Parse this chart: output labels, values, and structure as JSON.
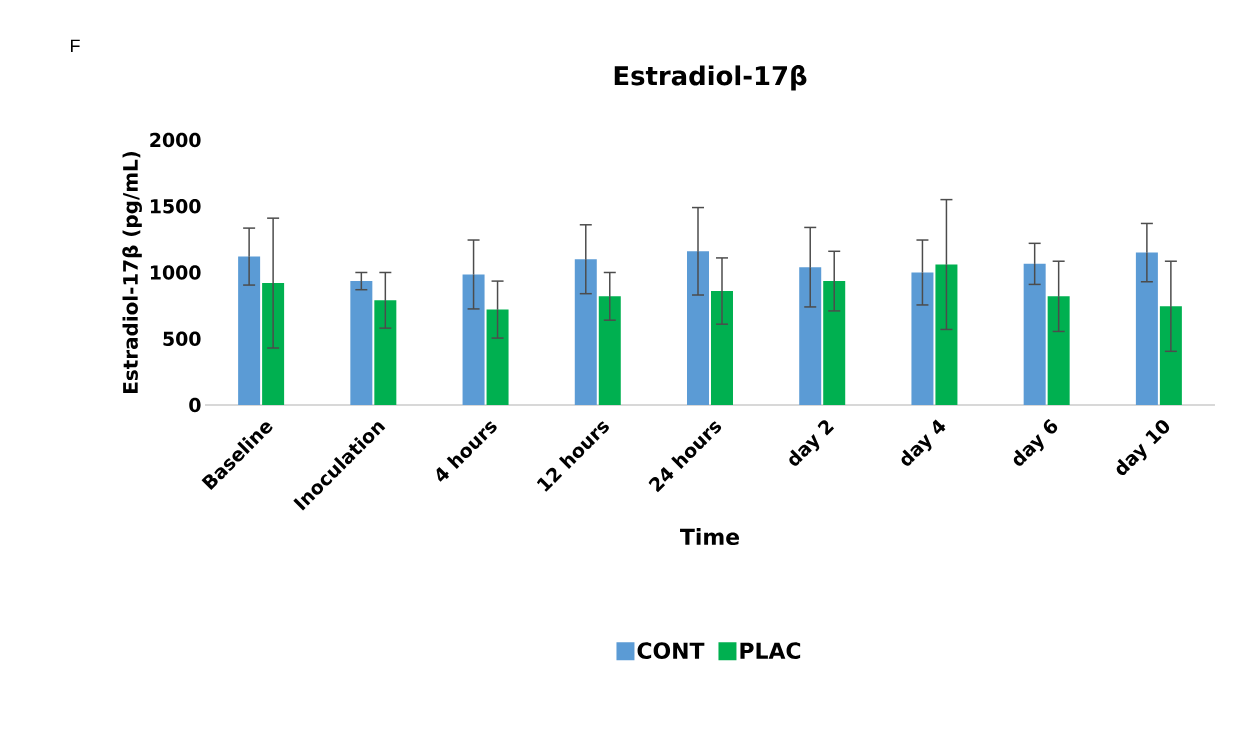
{
  "chart_data": {
    "type": "bar",
    "title": "Estradiol-17β",
    "xlabel": "Time",
    "ylabel": "Estradiol-17β (pg/mL)",
    "annotations": [
      "F"
    ],
    "categories": [
      "Baseline",
      "Inoculation",
      "4 hours",
      "12 hours",
      "24 hours",
      "day 2",
      "day 4",
      "day 6",
      "day 10"
    ],
    "series": [
      {
        "name": "CONT",
        "color": "#5b9bd5",
        "values": [
          1120,
          935,
          985,
          1100,
          1160,
          1040,
          1000,
          1065,
          1150
        ],
        "errors": [
          215,
          65,
          260,
          260,
          330,
          300,
          245,
          155,
          220
        ]
      },
      {
        "name": "PLAC",
        "color": "#00b050",
        "values": [
          920,
          790,
          720,
          820,
          860,
          935,
          1060,
          820,
          745
        ],
        "errors": [
          490,
          210,
          215,
          180,
          250,
          225,
          490,
          265,
          340
        ]
      }
    ],
    "ylim": [
      0,
      2000
    ],
    "yticks": [
      0,
      500,
      1000,
      1500,
      2000
    ],
    "legend": "bottom"
  }
}
